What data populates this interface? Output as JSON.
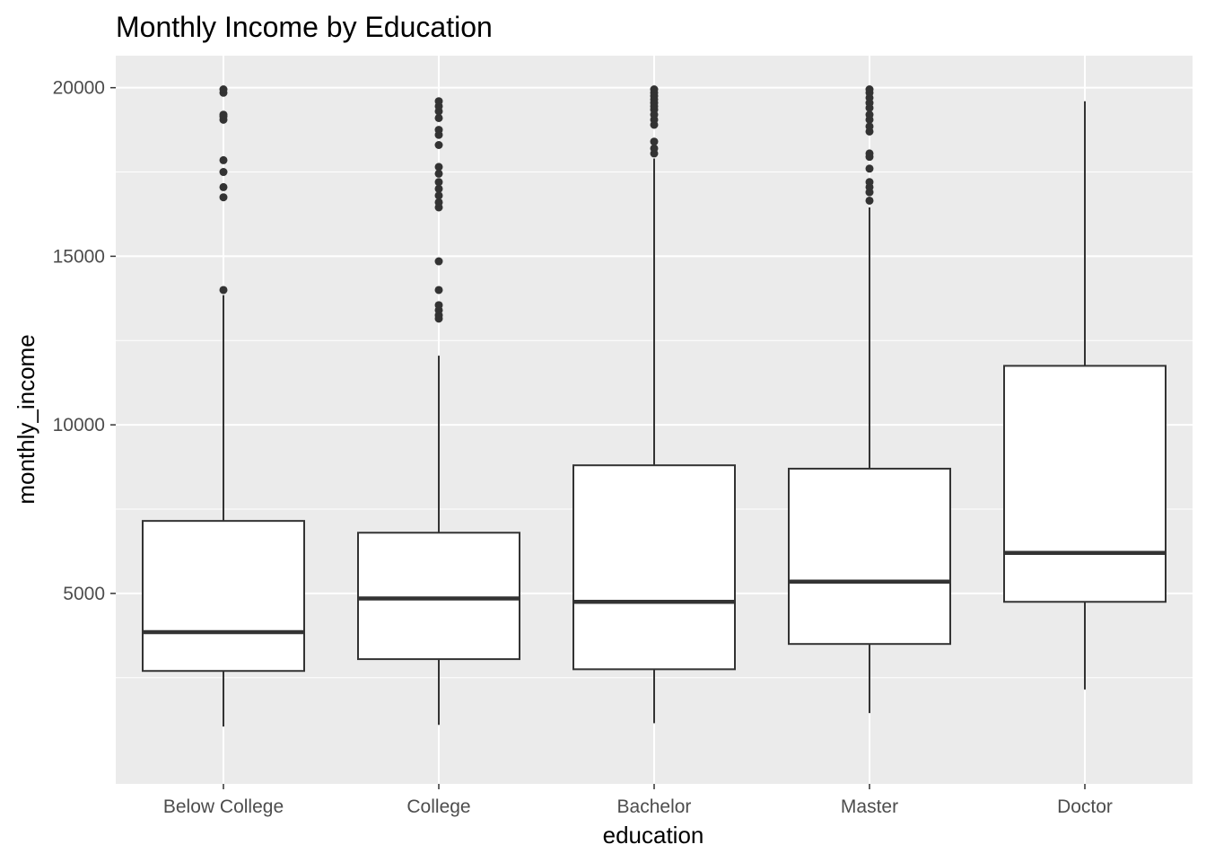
{
  "chart_data": {
    "type": "boxplot",
    "title": "Monthly Income by Education",
    "xlabel": "education",
    "ylabel": "monthly_income",
    "ylim": [
      -650,
      20950
    ],
    "yticks": [
      5000,
      10000,
      15000,
      20000
    ],
    "grid": true,
    "categories": [
      "Below College",
      "College",
      "Bachelor",
      "Master",
      "Doctor"
    ],
    "boxes": [
      {
        "category": "Below College",
        "whisker_low": 1050,
        "q1": 2700,
        "median": 3850,
        "q3": 7150,
        "whisker_high": 13850,
        "outliers": [
          14000,
          16750,
          17050,
          17500,
          17850,
          19050,
          19150,
          19200,
          19850,
          19950
        ]
      },
      {
        "category": "College",
        "whisker_low": 1100,
        "q1": 3050,
        "median": 4850,
        "q3": 6800,
        "whisker_high": 12050,
        "outliers": [
          13150,
          13250,
          13400,
          13550,
          14000,
          14850,
          16450,
          16600,
          16800,
          17000,
          17200,
          17450,
          17650,
          18300,
          18600,
          18750,
          19100,
          19300,
          19450,
          19600
        ]
      },
      {
        "category": "Bachelor",
        "whisker_low": 1150,
        "q1": 2750,
        "median": 4750,
        "q3": 8800,
        "whisker_high": 17900,
        "outliers": [
          18050,
          18200,
          18400,
          18900,
          19050,
          19200,
          19350,
          19450,
          19550,
          19650,
          19750,
          19850,
          19950
        ]
      },
      {
        "category": "Master",
        "whisker_low": 1450,
        "q1": 3500,
        "median": 5350,
        "q3": 8700,
        "whisker_high": 16450,
        "outliers": [
          16650,
          16900,
          17050,
          17200,
          17600,
          17950,
          18050,
          18700,
          18850,
          19050,
          19200,
          19400,
          19550,
          19700,
          19850,
          19950
        ]
      },
      {
        "category": "Doctor",
        "whisker_low": 2150,
        "q1": 4750,
        "median": 6200,
        "q3": 11750,
        "whisker_high": 19600,
        "outliers": []
      }
    ]
  }
}
